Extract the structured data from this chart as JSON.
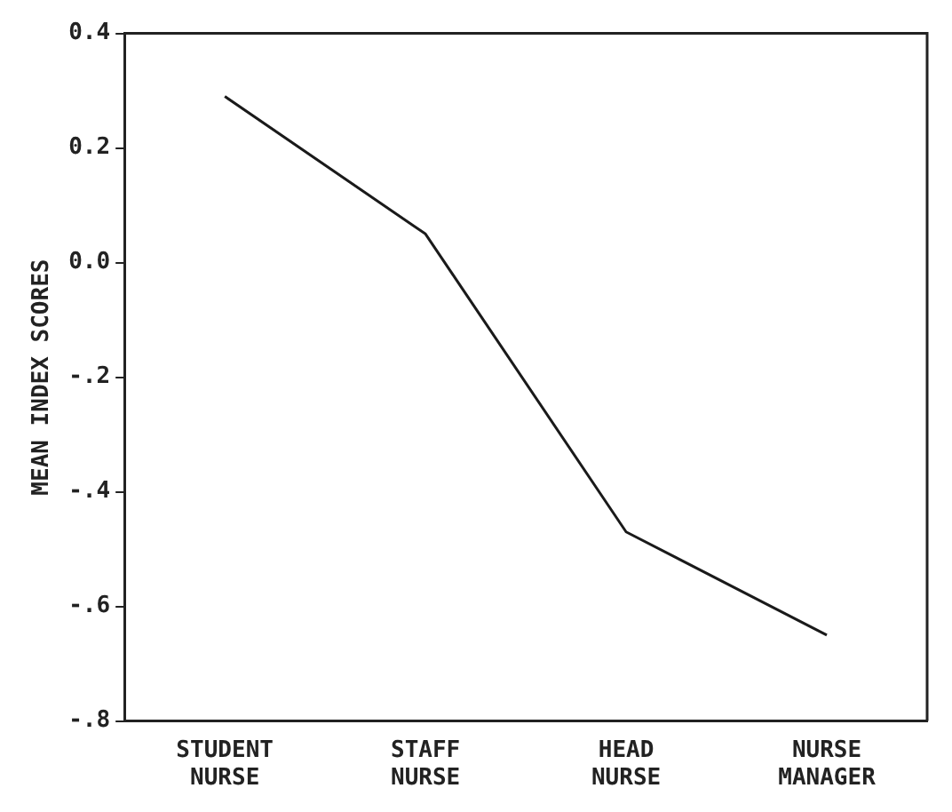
{
  "chart_data": {
    "type": "line",
    "ylabel": "MEAN INDEX SCORES",
    "categories": [
      "STUDENT\nNURSE",
      "STAFF\nNURSE",
      "HEAD\nNURSE",
      "NURSE\nMANAGER"
    ],
    "series": [
      {
        "color": "#1a1a1a",
        "values": [
          0.29,
          0.05,
          -0.47,
          -0.65
        ]
      }
    ],
    "ylim": [
      -0.8,
      0.4
    ],
    "yticks": [
      {
        "value": 0.4,
        "label": "0.4"
      },
      {
        "value": 0.2,
        "label": "0.2"
      },
      {
        "value": 0,
        "label": "0.0"
      },
      {
        "value": -0.2,
        "label": "-.2"
      },
      {
        "value": -0.4,
        "label": "-.4"
      },
      {
        "value": -0.6,
        "label": "-.6"
      },
      {
        "value": -0.8,
        "label": "-.8"
      }
    ],
    "grid": false,
    "legend": false,
    "marker": "none",
    "line_style": "solid"
  }
}
